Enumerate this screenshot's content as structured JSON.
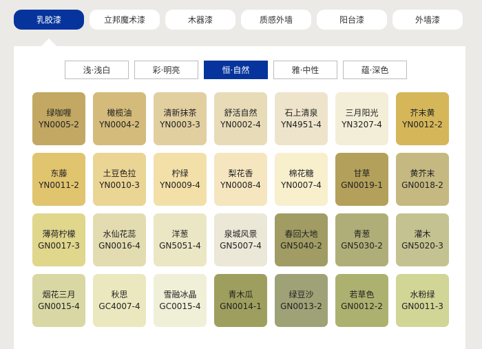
{
  "tabs": [
    {
      "label": "乳胶漆",
      "active": true
    },
    {
      "label": "立邦魔术漆"
    },
    {
      "label": "木器漆"
    },
    {
      "label": "质感外墙"
    },
    {
      "label": "阳台漆"
    },
    {
      "label": "外墙漆"
    }
  ],
  "subtabs": [
    {
      "label": "浅·浅白"
    },
    {
      "label": "彩·明亮"
    },
    {
      "label": "恒·自然",
      "active": true
    },
    {
      "label": "雅·中性"
    },
    {
      "label": "蕴·深色"
    }
  ],
  "accent": "#06349c",
  "swatches": [
    {
      "name": "绿咖喱",
      "code": "YN0005-2",
      "color": "#c3a863"
    },
    {
      "name": "橄榄油",
      "code": "YN0004-2",
      "color": "#d4bb7b"
    },
    {
      "name": "清新抹茶",
      "code": "YN0003-3",
      "color": "#e2cfa0"
    },
    {
      "name": "舒活自然",
      "code": "YN0002-4",
      "color": "#e8dbb8"
    },
    {
      "name": "石上清泉",
      "code": "YN4951-4",
      "color": "#ede4cb"
    },
    {
      "name": "三月阳光",
      "code": "YN3207-4",
      "color": "#f3eed8"
    },
    {
      "name": "芥末黄",
      "code": "YN0012-2",
      "color": "#d5b75a"
    },
    {
      "name": "东藤",
      "code": "YN0011-2",
      "color": "#e0c46e"
    },
    {
      "name": "土豆色拉",
      "code": "YN0010-3",
      "color": "#ebd594"
    },
    {
      "name": "柠绿",
      "code": "YN0009-4",
      "color": "#f2e0a8"
    },
    {
      "name": "梨花香",
      "code": "YN0008-4",
      "color": "#f5e6bf"
    },
    {
      "name": "棉花糖",
      "code": "YN0007-4",
      "color": "#f8efcd"
    },
    {
      "name": "甘草",
      "code": "GN0019-1",
      "color": "#b3a05a"
    },
    {
      "name": "黄芥末",
      "code": "GN0018-2",
      "color": "#c5b981"
    },
    {
      "name": "薄荷柠檬",
      "code": "GN0017-3",
      "color": "#e0d68c"
    },
    {
      "name": "水仙花蕊",
      "code": "GN0016-4",
      "color": "#e3dcb1"
    },
    {
      "name": "洋葱",
      "code": "GN5051-4",
      "color": "#ebe6c4"
    },
    {
      "name": "泉城风景",
      "code": "GN5007-4",
      "color": "#ebe8d8"
    },
    {
      "name": "春回大地",
      "code": "GN5040-2",
      "color": "#a09c63"
    },
    {
      "name": "青葱",
      "code": "GN5030-2",
      "color": "#b0ae78"
    },
    {
      "name": "灌木",
      "code": "GN5020-3",
      "color": "#c4c290"
    },
    {
      "name": "烟花三月",
      "code": "GN0015-4",
      "color": "#d9d8a4"
    },
    {
      "name": "秋思",
      "code": "GC4007-4",
      "color": "#ebe8bf"
    },
    {
      "name": "雪融冰晶",
      "code": "GC0015-4",
      "color": "#f0f0d8"
    },
    {
      "name": "青木瓜",
      "code": "GN0014-1",
      "color": "#9e9f5f"
    },
    {
      "name": "绿豆沙",
      "code": "GN0013-2",
      "color": "#9fa277"
    },
    {
      "name": "若草色",
      "code": "GN0012-2",
      "color": "#adb16f"
    },
    {
      "name": "水粉绿",
      "code": "GN0011-3",
      "color": "#d1d596"
    }
  ]
}
